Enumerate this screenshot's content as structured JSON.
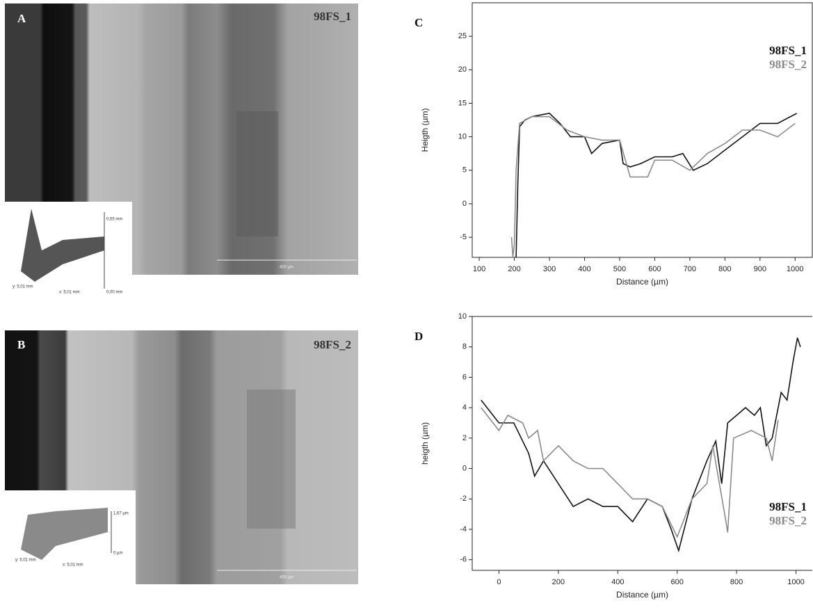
{
  "images": [
    {
      "label": "A",
      "sample": "98FS_1",
      "scale_bar": "400 µm",
      "inset_labels": [
        "0,55 mm",
        "0,00 mm",
        "x: 5,01 mm",
        "y: 5,01 mm"
      ]
    },
    {
      "label": "B",
      "sample": "98FS_2",
      "scale_bar": "400 µm",
      "inset_labels": [
        "1,67 µm",
        "0 µm",
        "x: 5,01 mm",
        "y: 5,01 mm"
      ]
    }
  ],
  "chart_data": [
    {
      "type": "line",
      "label": "C",
      "x_label": "Distance (µm)",
      "y_label": "Heigth (µm)",
      "xlim": [
        80,
        1049
      ],
      "ylim": [
        -8,
        30
      ],
      "xticks": [
        100,
        200,
        300,
        400,
        500,
        600,
        700,
        800,
        900,
        1000
      ],
      "yticks": [
        -5,
        0,
        5,
        10,
        15,
        20,
        25
      ],
      "legend": "top-right",
      "box": true,
      "series": [
        {
          "name": "98FS_1",
          "color": "#111111",
          "x": [
            205,
            210,
            215,
            230,
            250,
            300,
            330,
            360,
            400,
            420,
            450,
            500,
            510,
            530,
            560,
            600,
            650,
            680,
            710,
            750,
            800,
            850,
            900,
            950,
            1005
          ],
          "values": [
            -8,
            3,
            11.5,
            12.5,
            13,
            13.5,
            12,
            10,
            10,
            7.5,
            9,
            9.5,
            6,
            5.5,
            6,
            7,
            7,
            7.5,
            5,
            6,
            8,
            10,
            12,
            12,
            13.5
          ]
        },
        {
          "name": "98FS_2",
          "color": "#8a8a8a",
          "x": [
            192,
            196,
            200,
            205,
            215,
            250,
            300,
            350,
            400,
            450,
            500,
            530,
            580,
            600,
            650,
            700,
            750,
            800,
            850,
            900,
            950,
            1000
          ],
          "values": [
            -5,
            -8,
            -6,
            5,
            12,
            13,
            13,
            11,
            10,
            9.5,
            9.5,
            4,
            4,
            6.5,
            6.5,
            5,
            7.5,
            9,
            11,
            11,
            10,
            12
          ]
        }
      ]
    },
    {
      "type": "line",
      "label": "D",
      "x_label": "Distance (µm)",
      "y_label": "heigth (µm)",
      "xlim": [
        -90,
        1055
      ],
      "ylim": [
        -6.7,
        10
      ],
      "xticks": [
        0,
        200,
        400,
        600,
        800,
        1000
      ],
      "yticks": [
        -6,
        -4,
        -2,
        0,
        2,
        4,
        6,
        8,
        10
      ],
      "legend": "bottom-right",
      "box": false,
      "series": [
        {
          "name": "98FS_1",
          "color": "#111111",
          "x": [
            -60,
            0,
            50,
            100,
            120,
            150,
            200,
            250,
            300,
            350,
            400,
            450,
            500,
            550,
            580,
            605,
            650,
            700,
            730,
            750,
            770,
            800,
            830,
            860,
            880,
            900,
            920,
            950,
            970,
            990,
            1005,
            1015
          ],
          "values": [
            4.5,
            3,
            3,
            1,
            -0.5,
            0.5,
            -1,
            -2.5,
            -2,
            -2.5,
            -2.5,
            -3.5,
            -2,
            -2.5,
            -4,
            -5.4,
            -2,
            0.5,
            1.8,
            -1,
            3,
            3.5,
            4,
            3.5,
            4,
            1.5,
            2,
            5,
            4.5,
            7,
            8.6,
            8
          ]
        },
        {
          "name": "98FS_2",
          "color": "#8a8a8a",
          "x": [
            -60,
            0,
            30,
            80,
            100,
            130,
            150,
            200,
            250,
            300,
            350,
            400,
            450,
            500,
            550,
            600,
            650,
            700,
            720,
            760,
            770,
            790,
            850,
            900,
            920,
            940
          ],
          "values": [
            4,
            2.5,
            3.5,
            3,
            2,
            2.5,
            0.5,
            1.5,
            0.5,
            0,
            0,
            -1,
            -2,
            -2,
            -2.5,
            -4.5,
            -2,
            -1,
            1.5,
            -3,
            -4.2,
            2,
            2.5,
            2,
            0.5,
            3.2
          ]
        }
      ]
    }
  ]
}
